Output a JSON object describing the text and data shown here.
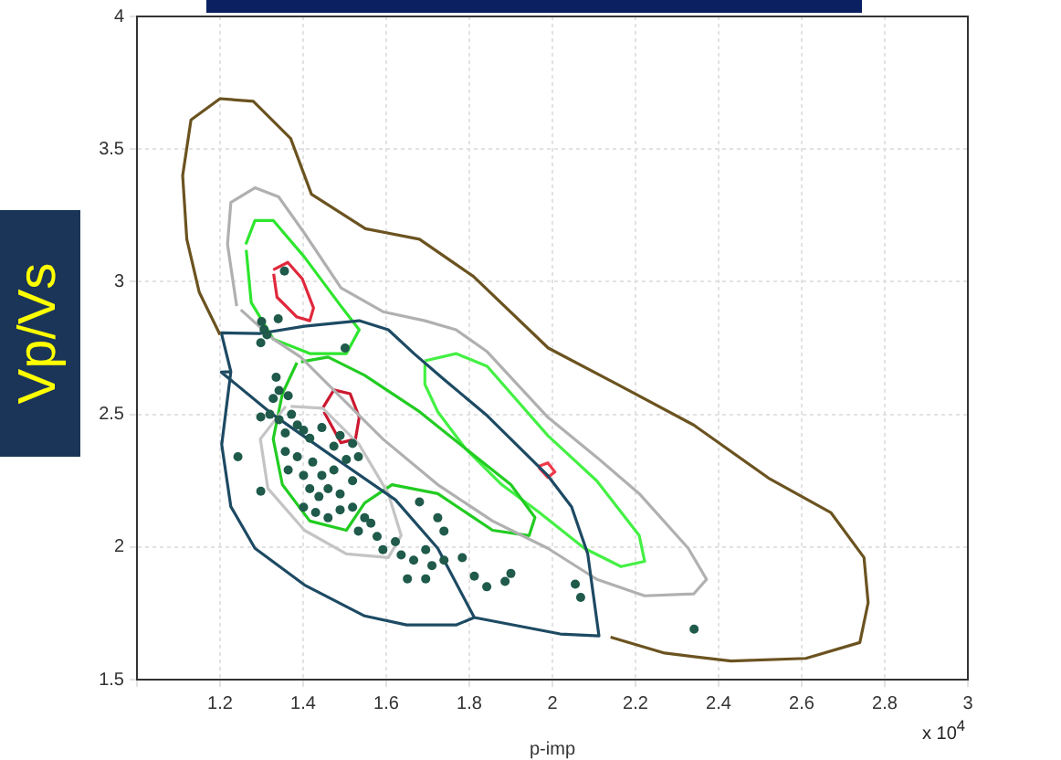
{
  "chart_data": {
    "type": "scatter",
    "xlabel": "p-imp",
    "ylabel": "Vp/Vs",
    "annotations": [
      "x 10$^{4}$"
    ],
    "xlim": [
      1,
      3
    ],
    "xticks": [
      {
        "value": 1,
        "label": null
      },
      1.2,
      1.4,
      1.6,
      1.8,
      2,
      2.2,
      2.4,
      2.6,
      2.8,
      3
    ],
    "ylim": [
      1.5,
      4
    ],
    "yticks": [
      1.5,
      2,
      2.5,
      3,
      3.5,
      4
    ],
    "grid": true,
    "marker": "circle",
    "series": [
      {
        "color": "#1f5a4a",
        "x": [
          1.3,
          1.34,
          1.306,
          1.313,
          1.298,
          1.501,
          1.335,
          1.342,
          1.328,
          1.364,
          1.298,
          1.32,
          1.342,
          1.372,
          1.386,
          1.357,
          1.401,
          1.416,
          1.445,
          1.489,
          1.474,
          1.519,
          1.243,
          1.298,
          1.357,
          1.364,
          1.386,
          1.401,
          1.423,
          1.445,
          1.474,
          1.504,
          1.533,
          1.416,
          1.438,
          1.46,
          1.489,
          1.519,
          1.401,
          1.43,
          1.46,
          1.489,
          1.519,
          1.548,
          1.533,
          1.563,
          1.578,
          1.592,
          1.622,
          1.636,
          1.666,
          1.695,
          1.68,
          1.724,
          1.739,
          1.71,
          1.739,
          1.783,
          1.812,
          1.842,
          1.886,
          1.9,
          1.651,
          1.695,
          1.355,
          2.055,
          2.068,
          2.341
        ],
        "values": [
          2.85,
          2.86,
          2.82,
          2.8,
          2.77,
          2.75,
          2.64,
          2.59,
          2.56,
          2.57,
          2.49,
          2.5,
          2.48,
          2.5,
          2.46,
          2.43,
          2.44,
          2.41,
          2.45,
          2.42,
          2.38,
          2.39,
          2.34,
          2.21,
          2.36,
          2.29,
          2.34,
          2.27,
          2.32,
          2.27,
          2.29,
          2.33,
          2.34,
          2.22,
          2.19,
          2.22,
          2.2,
          2.25,
          2.15,
          2.13,
          2.11,
          2.14,
          2.15,
          2.11,
          2.06,
          2.09,
          2.04,
          1.99,
          2.02,
          1.97,
          1.95,
          1.99,
          2.17,
          2.11,
          2.06,
          1.93,
          1.95,
          1.96,
          1.89,
          1.85,
          1.87,
          1.9,
          1.88,
          1.88,
          3.04,
          1.86,
          1.81,
          1.69
        ]
      },
      {
        "type": "line",
        "marker": "none",
        "color": "#6b5320",
        "x": [
          1.2,
          1.15,
          1.12,
          1.11,
          1.13,
          1.2,
          1.28,
          1.37,
          1.42,
          1.55,
          1.68,
          1.81,
          1.99,
          2.16,
          2.34,
          2.52,
          2.67,
          2.75,
          2.76,
          2.74,
          2.61,
          2.43,
          2.27,
          2.14
        ],
        "values": [
          2.8,
          2.96,
          3.16,
          3.4,
          3.61,
          3.69,
          3.68,
          3.54,
          3.33,
          3.2,
          3.16,
          3.02,
          2.75,
          2.61,
          2.46,
          2.26,
          2.13,
          1.96,
          1.79,
          1.64,
          1.58,
          1.57,
          1.6,
          1.66
        ]
      },
      {
        "type": "line",
        "marker": "none",
        "color": "#1d4a63",
        "x": [
          1.812,
          1.724,
          1.622,
          1.474,
          1.328,
          1.203,
          1.226,
          1.203,
          1.297,
          1.403,
          1.535,
          1.605,
          1.667,
          1.738,
          1.843,
          1.931,
          1.989,
          2.046,
          2.085,
          2.112,
          2.019,
          1.812,
          1.768,
          1.649,
          1.548,
          1.403,
          1.284,
          1.226,
          1.204,
          1.226
        ],
        "values": [
          1.734,
          1.995,
          2.178,
          2.338,
          2.498,
          2.659,
          2.661,
          2.807,
          2.805,
          2.832,
          2.853,
          2.819,
          2.729,
          2.633,
          2.495,
          2.359,
          2.269,
          2.152,
          1.974,
          1.665,
          1.672,
          1.734,
          1.706,
          1.706,
          1.74,
          1.857,
          1.995,
          2.152,
          2.386,
          2.661
        ]
      },
      {
        "type": "line",
        "marker": "none",
        "color": "#b0b0b0",
        "x": [
          1.24,
          1.218,
          1.226,
          1.284,
          1.341,
          1.403,
          1.491,
          1.592,
          1.693,
          1.768,
          1.843,
          1.989,
          2.107,
          2.209,
          2.327,
          2.371,
          2.34,
          2.222,
          2.107,
          1.989,
          1.856,
          1.724,
          1.592,
          1.482,
          1.394,
          1.328,
          1.25
        ],
        "values": [
          2.908,
          3.141,
          3.299,
          3.354,
          3.32,
          3.183,
          2.977,
          2.887,
          2.853,
          2.819,
          2.736,
          2.489,
          2.338,
          2.201,
          1.995,
          1.878,
          1.823,
          1.816,
          1.878,
          1.995,
          2.098,
          2.235,
          2.407,
          2.578,
          2.716,
          2.784,
          2.894
        ]
      },
      {
        "type": "line",
        "marker": "none",
        "color": "#c4c4c4",
        "x": [
          1.358,
          1.297,
          1.315,
          1.403,
          1.504,
          1.605,
          1.636,
          1.605,
          1.535,
          1.447,
          1.37
        ],
        "values": [
          2.53,
          2.407,
          2.221,
          2.063,
          1.974,
          1.96,
          2.043,
          2.201,
          2.386,
          2.523,
          2.53
        ]
      },
      {
        "type": "line",
        "marker": "none",
        "color": "#2ee62e",
        "x": [
          1.262,
          1.284,
          1.328,
          1.403,
          1.491,
          1.535,
          1.504,
          1.416,
          1.328,
          1.275,
          1.263
        ],
        "values": [
          3.141,
          3.231,
          3.231,
          3.093,
          2.908,
          2.819,
          2.729,
          2.729,
          2.784,
          2.922,
          3.12
        ]
      },
      {
        "type": "line",
        "marker": "none",
        "color": "#22cc22",
        "x": [
          1.385,
          1.35,
          1.328,
          1.35,
          1.416,
          1.504,
          1.548,
          1.614,
          1.724,
          1.856,
          1.944,
          1.958,
          1.9,
          1.79,
          1.68,
          1.548,
          1.46,
          1.395
        ],
        "values": [
          2.695,
          2.578,
          2.407,
          2.235,
          2.098,
          2.063,
          2.166,
          2.235,
          2.201,
          2.063,
          2.043,
          2.111,
          2.235,
          2.372,
          2.51,
          2.647,
          2.716,
          2.698
        ]
      },
      {
        "type": "line",
        "marker": "none",
        "color": "#44f044",
        "x": [
          1.693,
          1.768,
          1.843,
          1.989,
          2.107,
          2.209,
          2.222,
          2.165,
          2.077,
          1.967,
          1.878,
          1.79,
          1.724,
          1.693,
          1.693
        ],
        "values": [
          2.702,
          2.729,
          2.681,
          2.42,
          2.249,
          2.043,
          1.946,
          1.926,
          1.995,
          2.132,
          2.235,
          2.372,
          2.51,
          2.613,
          2.69
        ]
      },
      {
        "type": "line",
        "marker": "none",
        "color": "#e0283c",
        "x": [
          1.328,
          1.363,
          1.398,
          1.425,
          1.416,
          1.385,
          1.337,
          1.329
        ],
        "values": [
          3.045,
          3.073,
          3.011,
          2.901,
          2.853,
          2.867,
          2.942,
          3.03
        ]
      },
      {
        "type": "line",
        "marker": "none",
        "color": "#cc1830",
        "x": [
          1.447,
          1.474,
          1.513,
          1.535,
          1.526,
          1.491,
          1.45
        ],
        "values": [
          2.523,
          2.592,
          2.578,
          2.489,
          2.407,
          2.393,
          2.51
        ]
      },
      {
        "type": "line",
        "marker": "none",
        "color": "#f03a4c",
        "x": [
          1.967,
          1.989,
          2.006,
          1.989,
          1.967
        ],
        "values": [
          2.304,
          2.317,
          2.283,
          2.262,
          2.3
        ]
      }
    ]
  }
}
